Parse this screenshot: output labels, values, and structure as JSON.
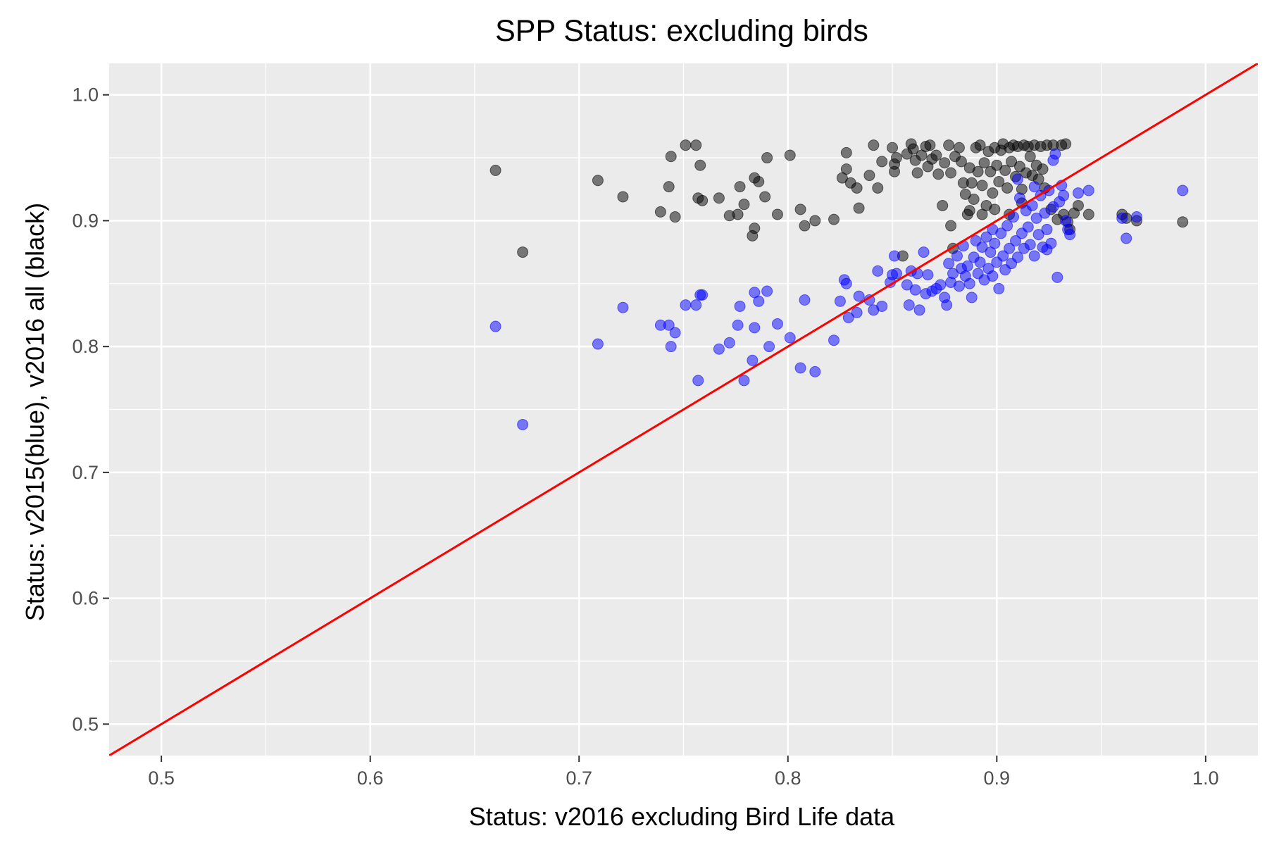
{
  "chart_data": {
    "type": "scatter",
    "title": "SPP Status: excluding birds",
    "xlabel": "Status: v2016 excluding Bird Life data",
    "ylabel": "Status: v2015(blue), v2016 all (black)",
    "xlim": [
      0.475,
      1.025
    ],
    "ylim": [
      0.475,
      1.025
    ],
    "x_ticks": [
      0.5,
      0.6,
      0.7,
      0.8,
      0.9,
      1.0
    ],
    "y_ticks": [
      0.5,
      0.6,
      0.7,
      0.8,
      0.9,
      1.0
    ],
    "x_tick_labels": [
      "0.5",
      "0.6",
      "0.7",
      "0.8",
      "0.9",
      "1.0"
    ],
    "y_tick_labels": [
      "0.5",
      "0.6",
      "0.7",
      "0.8",
      "0.9",
      "1.0"
    ],
    "grid": true,
    "background": "#ebebeb",
    "reference_line": {
      "slope": 1,
      "intercept": 0,
      "color": "#ff0000"
    },
    "series": [
      {
        "color": "#000000",
        "points": [
          [
            0.66,
            0.94
          ],
          [
            0.673,
            0.875
          ],
          [
            0.709,
            0.932
          ],
          [
            0.721,
            0.919
          ],
          [
            0.739,
            0.907
          ],
          [
            0.743,
            0.927
          ],
          [
            0.744,
            0.951
          ],
          [
            0.746,
            0.903
          ],
          [
            0.751,
            0.96
          ],
          [
            0.756,
            0.96
          ],
          [
            0.757,
            0.918
          ],
          [
            0.758,
            0.944
          ],
          [
            0.759,
            0.916
          ],
          [
            0.767,
            0.918
          ],
          [
            0.772,
            0.904
          ],
          [
            0.776,
            0.905
          ],
          [
            0.777,
            0.927
          ],
          [
            0.779,
            0.913
          ],
          [
            0.783,
            0.888
          ],
          [
            0.784,
            0.894
          ],
          [
            0.784,
            0.934
          ],
          [
            0.786,
            0.931
          ],
          [
            0.789,
            0.919
          ],
          [
            0.79,
            0.95
          ],
          [
            0.795,
            0.905
          ],
          [
            0.801,
            0.952
          ],
          [
            0.806,
            0.909
          ],
          [
            0.808,
            0.896
          ],
          [
            0.813,
            0.9
          ],
          [
            0.822,
            0.901
          ],
          [
            0.826,
            0.934
          ],
          [
            0.828,
            0.954
          ],
          [
            0.828,
            0.941
          ],
          [
            0.83,
            0.93
          ],
          [
            0.833,
            0.926
          ],
          [
            0.834,
            0.91
          ],
          [
            0.839,
            0.936
          ],
          [
            0.841,
            0.96
          ],
          [
            0.843,
            0.926
          ],
          [
            0.845,
            0.947
          ],
          [
            0.85,
            0.958
          ],
          [
            0.851,
            0.945
          ],
          [
            0.851,
            0.939
          ],
          [
            0.852,
            0.95
          ],
          [
            0.857,
            0.953
          ],
          [
            0.859,
            0.961
          ],
          [
            0.86,
            0.957
          ],
          [
            0.861,
            0.948
          ],
          [
            0.862,
            0.938
          ],
          [
            0.864,
            0.952
          ],
          [
            0.866,
            0.959
          ],
          [
            0.867,
            0.943
          ],
          [
            0.868,
            0.96
          ],
          [
            0.869,
            0.949
          ],
          [
            0.871,
            0.952
          ],
          [
            0.872,
            0.937
          ],
          [
            0.875,
            0.946
          ],
          [
            0.877,
            0.96
          ],
          [
            0.878,
            0.938
          ],
          [
            0.88,
            0.951
          ],
          [
            0.882,
            0.958
          ],
          [
            0.883,
            0.947
          ],
          [
            0.884,
            0.93
          ],
          [
            0.885,
            0.921
          ],
          [
            0.886,
            0.905
          ],
          [
            0.887,
            0.942
          ],
          [
            0.888,
            0.93
          ],
          [
            0.889,
            0.917
          ],
          [
            0.89,
            0.958
          ],
          [
            0.891,
            0.939
          ],
          [
            0.892,
            0.96
          ],
          [
            0.893,
            0.928
          ],
          [
            0.894,
            0.946
          ],
          [
            0.895,
            0.912
          ],
          [
            0.896,
            0.955
          ],
          [
            0.897,
            0.939
          ],
          [
            0.898,
            0.922
          ],
          [
            0.899,
            0.958
          ],
          [
            0.9,
            0.944
          ],
          [
            0.901,
            0.931
          ],
          [
            0.902,
            0.956
          ],
          [
            0.903,
            0.961
          ],
          [
            0.904,
            0.94
          ],
          [
            0.905,
            0.926
          ],
          [
            0.906,
            0.958
          ],
          [
            0.907,
            0.947
          ],
          [
            0.908,
            0.96
          ],
          [
            0.909,
            0.935
          ],
          [
            0.91,
            0.959
          ],
          [
            0.911,
            0.943
          ],
          [
            0.912,
            0.925
          ],
          [
            0.913,
            0.96
          ],
          [
            0.914,
            0.938
          ],
          [
            0.915,
            0.959
          ],
          [
            0.916,
            0.951
          ],
          [
            0.917,
            0.936
          ],
          [
            0.918,
            0.96
          ],
          [
            0.919,
            0.944
          ],
          [
            0.92,
            0.933
          ],
          [
            0.921,
            0.959
          ],
          [
            0.922,
            0.941
          ],
          [
            0.923,
            0.926
          ],
          [
            0.924,
            0.96
          ],
          [
            0.926,
            0.909
          ],
          [
            0.927,
            0.96
          ],
          [
            0.929,
            0.901
          ],
          [
            0.931,
            0.96
          ],
          [
            0.932,
            0.905
          ],
          [
            0.933,
            0.961
          ],
          [
            0.934,
            0.899
          ],
          [
            0.935,
            0.893
          ],
          [
            0.937,
            0.906
          ],
          [
            0.939,
            0.912
          ],
          [
            0.944,
            0.905
          ],
          [
            0.96,
            0.905
          ],
          [
            0.962,
            0.902
          ],
          [
            0.967,
            0.9
          ],
          [
            0.989,
            0.899
          ],
          [
            0.855,
            0.872
          ],
          [
            0.879,
            0.878
          ],
          [
            0.874,
            0.912
          ],
          [
            0.878,
            0.896
          ],
          [
            0.887,
            0.908
          ],
          [
            0.893,
            0.905
          ],
          [
            0.899,
            0.909
          ],
          [
            0.906,
            0.905
          ],
          [
            0.912,
            0.914
          ]
        ]
      },
      {
        "color": "#0000ff",
        "points": [
          [
            0.66,
            0.816
          ],
          [
            0.673,
            0.738
          ],
          [
            0.709,
            0.802
          ],
          [
            0.721,
            0.831
          ],
          [
            0.739,
            0.817
          ],
          [
            0.743,
            0.817
          ],
          [
            0.744,
            0.8
          ],
          [
            0.746,
            0.811
          ],
          [
            0.751,
            0.833
          ],
          [
            0.756,
            0.833
          ],
          [
            0.757,
            0.773
          ],
          [
            0.758,
            0.841
          ],
          [
            0.759,
            0.841
          ],
          [
            0.767,
            0.798
          ],
          [
            0.772,
            0.803
          ],
          [
            0.776,
            0.817
          ],
          [
            0.777,
            0.832
          ],
          [
            0.779,
            0.773
          ],
          [
            0.783,
            0.789
          ],
          [
            0.784,
            0.843
          ],
          [
            0.784,
            0.815
          ],
          [
            0.786,
            0.836
          ],
          [
            0.79,
            0.844
          ],
          [
            0.791,
            0.8
          ],
          [
            0.795,
            0.818
          ],
          [
            0.801,
            0.807
          ],
          [
            0.806,
            0.783
          ],
          [
            0.808,
            0.837
          ],
          [
            0.813,
            0.78
          ],
          [
            0.822,
            0.805
          ],
          [
            0.825,
            0.836
          ],
          [
            0.827,
            0.853
          ],
          [
            0.828,
            0.85
          ],
          [
            0.829,
            0.823
          ],
          [
            0.833,
            0.827
          ],
          [
            0.834,
            0.84
          ],
          [
            0.839,
            0.837
          ],
          [
            0.841,
            0.829
          ],
          [
            0.843,
            0.86
          ],
          [
            0.845,
            0.832
          ],
          [
            0.849,
            0.851
          ],
          [
            0.85,
            0.857
          ],
          [
            0.851,
            0.872
          ],
          [
            0.852,
            0.858
          ],
          [
            0.857,
            0.849
          ],
          [
            0.858,
            0.833
          ],
          [
            0.859,
            0.86
          ],
          [
            0.861,
            0.845
          ],
          [
            0.862,
            0.858
          ],
          [
            0.863,
            0.829
          ],
          [
            0.865,
            0.875
          ],
          [
            0.866,
            0.842
          ],
          [
            0.867,
            0.857
          ],
          [
            0.869,
            0.844
          ],
          [
            0.871,
            0.846
          ],
          [
            0.873,
            0.849
          ],
          [
            0.875,
            0.839
          ],
          [
            0.876,
            0.833
          ],
          [
            0.877,
            0.866
          ],
          [
            0.878,
            0.851
          ],
          [
            0.879,
            0.858
          ],
          [
            0.881,
            0.872
          ],
          [
            0.882,
            0.848
          ],
          [
            0.883,
            0.862
          ],
          [
            0.884,
            0.88
          ],
          [
            0.885,
            0.856
          ],
          [
            0.886,
            0.864
          ],
          [
            0.887,
            0.85
          ],
          [
            0.888,
            0.839
          ],
          [
            0.889,
            0.871
          ],
          [
            0.89,
            0.884
          ],
          [
            0.891,
            0.858
          ],
          [
            0.892,
            0.867
          ],
          [
            0.893,
            0.879
          ],
          [
            0.894,
            0.853
          ],
          [
            0.895,
            0.887
          ],
          [
            0.896,
            0.862
          ],
          [
            0.897,
            0.875
          ],
          [
            0.898,
            0.856
          ],
          [
            0.899,
            0.882
          ],
          [
            0.9,
            0.867
          ],
          [
            0.901,
            0.846
          ],
          [
            0.902,
            0.89
          ],
          [
            0.903,
            0.872
          ],
          [
            0.904,
            0.861
          ],
          [
            0.905,
            0.896
          ],
          [
            0.906,
            0.878
          ],
          [
            0.907,
            0.866
          ],
          [
            0.908,
            0.903
          ],
          [
            0.909,
            0.884
          ],
          [
            0.91,
            0.871
          ],
          [
            0.911,
            0.918
          ],
          [
            0.912,
            0.89
          ],
          [
            0.913,
            0.878
          ],
          [
            0.914,
            0.908
          ],
          [
            0.915,
            0.895
          ],
          [
            0.916,
            0.881
          ],
          [
            0.917,
            0.912
          ],
          [
            0.918,
            0.872
          ],
          [
            0.919,
            0.902
          ],
          [
            0.92,
            0.889
          ],
          [
            0.921,
            0.92
          ],
          [
            0.922,
            0.879
          ],
          [
            0.923,
            0.906
          ],
          [
            0.924,
            0.893
          ],
          [
            0.925,
            0.924
          ],
          [
            0.926,
            0.882
          ],
          [
            0.927,
            0.911
          ],
          [
            0.928,
            0.953
          ],
          [
            0.929,
            0.855
          ],
          [
            0.93,
            0.915
          ],
          [
            0.931,
            0.928
          ],
          [
            0.932,
            0.92
          ],
          [
            0.933,
            0.9
          ],
          [
            0.934,
            0.893
          ],
          [
            0.935,
            0.889
          ],
          [
            0.939,
            0.922
          ],
          [
            0.944,
            0.924
          ],
          [
            0.96,
            0.902
          ],
          [
            0.962,
            0.886
          ],
          [
            0.967,
            0.903
          ],
          [
            0.989,
            0.924
          ],
          [
            0.91,
            0.933
          ],
          [
            0.927,
            0.948
          ],
          [
            0.918,
            0.927
          ],
          [
            0.924,
            0.877
          ],
          [
            0.898,
            0.893
          ]
        ]
      }
    ]
  }
}
